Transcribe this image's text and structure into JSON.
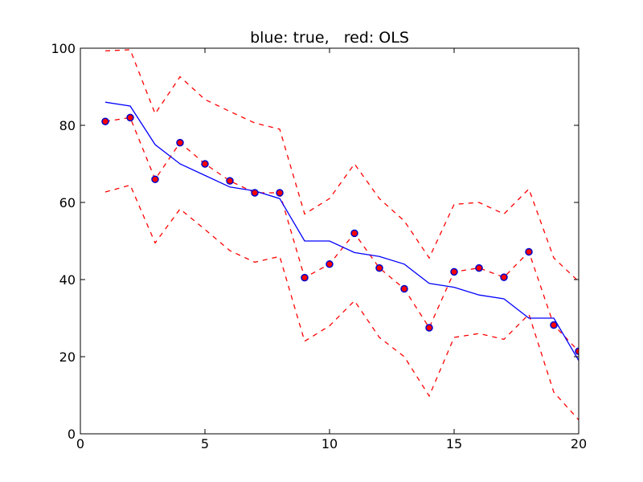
{
  "chart_data": {
    "type": "line",
    "title": "blue: true,   red: OLS",
    "xlabel": "",
    "ylabel": "",
    "xlim": [
      0,
      20
    ],
    "ylim": [
      0,
      100
    ],
    "xticks": [
      0,
      5,
      10,
      15,
      20
    ],
    "yticks": [
      0,
      20,
      40,
      60,
      80,
      100
    ],
    "grid": false,
    "legend": "none",
    "x": [
      1,
      2,
      3,
      4,
      5,
      6,
      7,
      8,
      9,
      10,
      11,
      12,
      13,
      14,
      15,
      16,
      17,
      18,
      19,
      20
    ],
    "series": [
      {
        "style": "solid-line",
        "color": "#0000ff",
        "values": [
          86,
          85,
          75,
          70,
          67,
          64,
          63,
          61,
          50,
          50,
          47,
          46,
          44,
          39,
          38,
          36,
          35,
          30,
          30,
          19
        ]
      },
      {
        "style": "scatter",
        "color": "#0000cc",
        "edge_color": "#0000cc",
        "fill_color": "#ff0000",
        "values": [
          81,
          82,
          66,
          75.5,
          70,
          65.6,
          62.5,
          62.5,
          40.5,
          44,
          52,
          43,
          37.6,
          27.5,
          42,
          43,
          40.6,
          47.2,
          28.2,
          21.4
        ]
      },
      {
        "style": "dashed-line",
        "color": "#ff0000",
        "values": [
          81,
          82,
          66,
          75.5,
          70,
          65.6,
          62.5,
          62.5,
          40.5,
          44,
          52,
          43,
          37.6,
          27.5,
          42,
          43,
          40.6,
          47.2,
          28.2,
          21.4
        ]
      },
      {
        "style": "dashed-line",
        "color": "#ff0000",
        "values": [
          99.3,
          99.6,
          83,
          92.6,
          86.7,
          83.6,
          80.6,
          79,
          57,
          61,
          70,
          61,
          55.2,
          45.6,
          59.5,
          60,
          57,
          63.5,
          45.6,
          39.5
        ]
      },
      {
        "style": "dashed-line",
        "color": "#ff0000",
        "values": [
          62.7,
          64.5,
          49.5,
          58.3,
          53,
          47.5,
          44.5,
          46,
          24,
          28,
          34.5,
          25,
          20,
          9.8,
          25,
          26,
          24.5,
          31,
          10.8,
          3.6
        ]
      }
    ]
  }
}
